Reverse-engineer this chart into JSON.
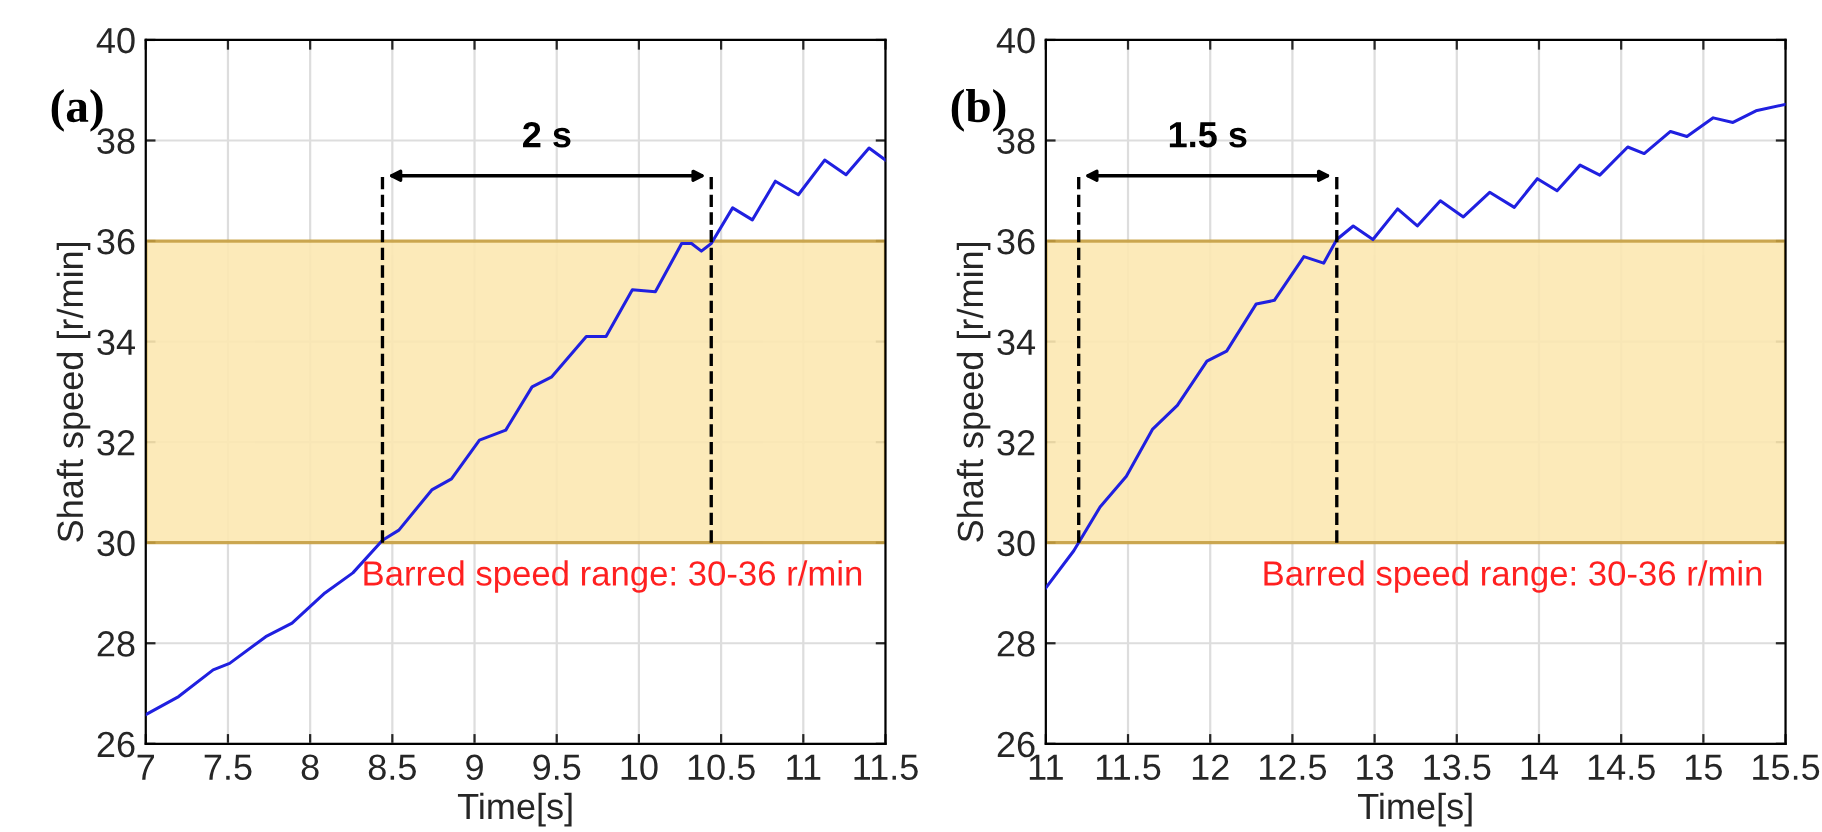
{
  "chart_data": [
    {
      "type": "line",
      "title": "(a)",
      "xlabel": "Time[s]",
      "ylabel": "Shaft speed [r/min]",
      "xlim": [
        7,
        11.5
      ],
      "xticks": [
        7,
        7.5,
        8,
        8.5,
        9,
        9.5,
        10,
        10.5,
        11,
        11.5
      ],
      "ylim": [
        26,
        40
      ],
      "yticks": [
        26,
        28,
        30,
        32,
        34,
        36,
        38,
        40
      ],
      "grid": true,
      "series": [
        {
          "color": "#2020e0",
          "x": [
            7,
            7.2,
            7.41,
            7.51,
            7.73,
            7.89,
            8.09,
            8.26,
            8.44,
            8.54,
            8.74,
            8.86,
            9.03,
            9.19,
            9.35,
            9.47,
            9.68,
            9.8,
            9.96,
            10.1,
            10.26,
            10.32,
            10.38,
            10.44,
            10.57,
            10.69,
            10.83,
            10.97,
            11.13,
            11.26,
            11.4,
            11.5
          ],
          "values": [
            26.58,
            26.94,
            27.47,
            27.6,
            28.13,
            28.4,
            29.0,
            29.4,
            30.05,
            30.25,
            31.05,
            31.27,
            32.04,
            32.24,
            33.1,
            33.3,
            34.1,
            34.1,
            35.03,
            34.99,
            35.95,
            35.95,
            35.8,
            35.95,
            36.66,
            36.42,
            37.19,
            36.92,
            37.61,
            37.32,
            37.85,
            37.61
          ]
        }
      ],
      "bands": [
        {
          "axis": "y",
          "from": 30,
          "to": 36,
          "label": "Barred speed range: 30-36 r/min",
          "color": "#fce8b2"
        }
      ],
      "ref_lines": [
        {
          "axis": "x",
          "value": 8.44,
          "line_style": "dashed"
        },
        {
          "axis": "x",
          "value": 10.44,
          "line_style": "dashed"
        }
      ],
      "annotations": [
        "2 s"
      ]
    },
    {
      "type": "line",
      "title": "(b)",
      "xlabel": "Time[s]",
      "ylabel": "Shaft speed [r/min]",
      "xlim": [
        11,
        15.5
      ],
      "xticks": [
        11,
        11.5,
        12,
        12.5,
        13,
        13.5,
        14,
        14.5,
        15,
        15.5
      ],
      "ylim": [
        26,
        40
      ],
      "yticks": [
        26,
        28,
        30,
        32,
        34,
        36,
        38,
        40
      ],
      "grid": true,
      "series": [
        {
          "color": "#2020e0",
          "x": [
            11,
            11.17,
            11.33,
            11.49,
            11.65,
            11.8,
            11.98,
            12.1,
            12.28,
            12.39,
            12.57,
            12.69,
            12.77,
            12.87,
            12.99,
            13.14,
            13.26,
            13.4,
            13.54,
            13.7,
            13.85,
            13.99,
            14.11,
            14.25,
            14.37,
            14.54,
            14.64,
            14.8,
            14.9,
            15.06,
            15.18,
            15.32,
            15.5
          ],
          "values": [
            29.1,
            29.84,
            30.71,
            31.32,
            32.26,
            32.73,
            33.61,
            33.81,
            34.75,
            34.82,
            35.69,
            35.56,
            36.03,
            36.3,
            36.03,
            36.64,
            36.3,
            36.8,
            36.48,
            36.97,
            36.67,
            37.24,
            37.0,
            37.51,
            37.31,
            37.87,
            37.74,
            38.18,
            38.08,
            38.45,
            38.36,
            38.59,
            38.72
          ]
        }
      ],
      "bands": [
        {
          "axis": "y",
          "from": 30,
          "to": 36,
          "label": "Barred speed range: 30-36 r/min",
          "color": "#fce8b2"
        }
      ],
      "ref_lines": [
        {
          "axis": "x",
          "value": 11.2,
          "line_style": "dashed"
        },
        {
          "axis": "x",
          "value": 12.77,
          "line_style": "dashed"
        }
      ],
      "annotations": [
        "1.5 s"
      ]
    }
  ]
}
